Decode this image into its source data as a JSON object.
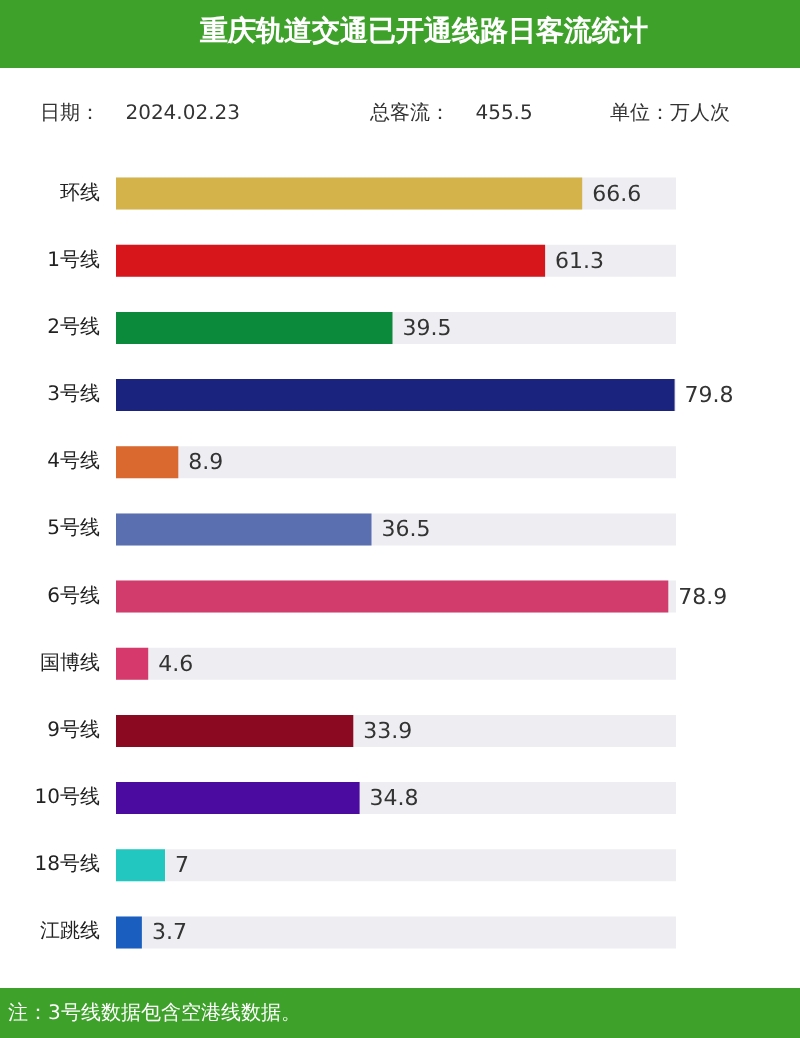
{
  "chart_data": {
    "type": "bar",
    "orientation": "horizontal",
    "title": "重庆轨道交通已开通线路日客流统计",
    "annotations": [
      "日期：    2024.02.23",
      "总客流：    455.5",
      "单位：万人次",
      "注：3号线数据包含空港线数据。"
    ],
    "categories": [
      "环线",
      "1号线",
      "2号线",
      "3号线",
      "4号线",
      "5号线",
      "6号线",
      "国博线",
      "9号线",
      "10号线",
      "18号线",
      "江跳线"
    ],
    "values": [
      66.6,
      61.3,
      39.5,
      79.8,
      8.9,
      36.5,
      78.9,
      4.6,
      33.9,
      34.8,
      7,
      3.7
    ],
    "colors": [
      "#d4b44a",
      "#d7161b",
      "#0a8a3a",
      "#1a237e",
      "#d9692e",
      "#5a6fb0",
      "#d23c6c",
      "#d63a6c",
      "#8b0a22",
      "#4b0aa0",
      "#22c8c0",
      "#1a5fc0"
    ],
    "data_labels": true
  }
}
